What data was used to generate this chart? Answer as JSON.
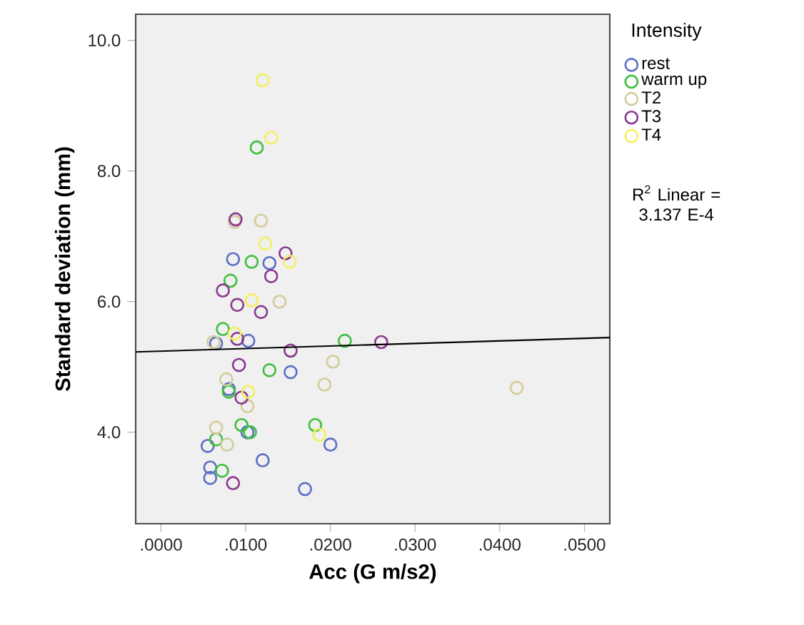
{
  "chart_data": {
    "type": "scatter",
    "xlabel": "Acc (G m/s2)",
    "ylabel": "Standard deviation (mm)",
    "legend_title": "Intensity",
    "legend": "right",
    "grid": false,
    "marker": "circle",
    "xlim": [
      -0.003,
      0.053
    ],
    "ylim": [
      2.6,
      10.4
    ],
    "xticks": [
      {
        "value": 0,
        "label": ".0000"
      },
      {
        "value": 0.01,
        "label": ".0100"
      },
      {
        "value": 0.02,
        "label": ".0200"
      },
      {
        "value": 0.03,
        "label": ".0300"
      },
      {
        "value": 0.04,
        "label": ".0400"
      },
      {
        "value": 0.05,
        "label": ".0500"
      }
    ],
    "yticks": [
      {
        "value": 4,
        "label": "4.0"
      },
      {
        "value": 6,
        "label": "6.0"
      },
      {
        "value": 8,
        "label": "8.0"
      },
      {
        "value": 10,
        "label": "10.0"
      }
    ],
    "annotations": [
      "R$^{2}$ Linear = 3.137 E-4"
    ],
    "series": [
      {
        "name": "rest",
        "color": "#5b6fc6",
        "x": [
          0.0085,
          0.0128,
          0.0065,
          0.0103,
          0.0153,
          0.008,
          0.0102,
          0.0055,
          0.02,
          0.012,
          0.0058,
          0.0058,
          0.017
        ],
        "values": [
          6.65,
          6.59,
          5.36,
          5.4,
          4.92,
          4.66,
          4.0,
          3.79,
          3.81,
          3.57,
          3.46,
          3.3,
          3.13
        ]
      },
      {
        "name": "warm up",
        "color": "#3fbf3f",
        "x": [
          0.0113,
          0.0107,
          0.0082,
          0.0073,
          0.0217,
          0.0128,
          0.008,
          0.0095,
          0.0105,
          0.0065,
          0.0182,
          0.0072
        ],
        "values": [
          8.36,
          6.61,
          6.32,
          5.58,
          5.4,
          4.95,
          4.62,
          4.11,
          4.0,
          3.89,
          4.11,
          3.41
        ]
      },
      {
        "name": "T2",
        "color": "#d4cc9c",
        "x": [
          0.0087,
          0.0118,
          0.014,
          0.0062,
          0.0203,
          0.0077,
          0.0193,
          0.0102,
          0.0065,
          0.0078,
          0.042
        ],
        "values": [
          7.22,
          7.24,
          6.0,
          5.38,
          5.08,
          4.81,
          4.73,
          4.4,
          4.07,
          3.81,
          4.68
        ]
      },
      {
        "name": "T3",
        "color": "#8b3a8f",
        "x": [
          0.0088,
          0.0147,
          0.013,
          0.0073,
          0.009,
          0.0118,
          0.009,
          0.0153,
          0.0092,
          0.0095,
          0.026,
          0.0085
        ],
        "values": [
          7.26,
          6.74,
          6.39,
          6.17,
          5.95,
          5.84,
          5.43,
          5.25,
          5.03,
          4.53,
          5.38,
          3.22
        ]
      },
      {
        "name": "T4",
        "color": "#f2f060",
        "x": [
          0.012,
          0.013,
          0.0123,
          0.0152,
          0.0107,
          0.0087,
          0.0103,
          0.0187
        ],
        "values": [
          9.39,
          8.51,
          6.89,
          6.61,
          6.02,
          5.51,
          4.62,
          3.96
        ]
      },
      {
        "type": "line",
        "color": "#000000",
        "marker": "none",
        "x": [
          -0.003,
          0.053
        ],
        "values": [
          5.23,
          5.45
        ]
      }
    ]
  }
}
